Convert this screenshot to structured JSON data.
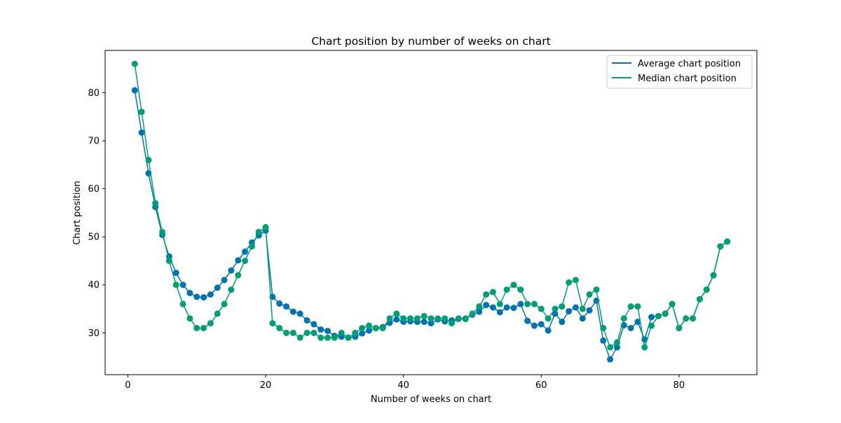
{
  "chart_data": {
    "type": "line",
    "title": "Chart position by number of weeks on chart",
    "xlabel": "Number of weeks on chart",
    "ylabel": "Chart position",
    "xlim": [
      -3.3,
      91.3
    ],
    "ylim": [
      21.3,
      88.8
    ],
    "xticks": [
      0,
      20,
      40,
      60,
      80
    ],
    "yticks": [
      30,
      40,
      50,
      60,
      70,
      80
    ],
    "xtick_labels": [
      "0",
      "20",
      "40",
      "60",
      "80"
    ],
    "ytick_labels": [
      "30",
      "40",
      "50",
      "60",
      "70",
      "80"
    ],
    "grid": false,
    "legend_position": "top-right",
    "legend_entries": [
      "Average chart position",
      "Median chart position"
    ],
    "x": [
      1,
      2,
      3,
      4,
      5,
      6,
      7,
      8,
      9,
      10,
      11,
      12,
      13,
      14,
      15,
      16,
      17,
      18,
      19,
      20,
      21,
      22,
      23,
      24,
      25,
      26,
      27,
      28,
      29,
      30,
      31,
      32,
      33,
      34,
      35,
      36,
      37,
      38,
      39,
      40,
      41,
      42,
      43,
      44,
      45,
      46,
      47,
      48,
      49,
      50,
      51,
      52,
      53,
      54,
      55,
      56,
      57,
      58,
      59,
      60,
      61,
      62,
      63,
      64,
      65,
      66,
      67,
      68,
      69,
      70,
      71,
      72,
      73,
      74,
      75,
      76,
      77,
      78,
      79,
      80,
      81,
      82,
      83,
      84,
      85,
      86,
      87
    ],
    "series": [
      {
        "name": "Average chart position",
        "color": "#0072b2",
        "values": [
          80.5,
          71.7,
          63.2,
          56.2,
          50.4,
          45.9,
          42.5,
          40.0,
          38.3,
          37.5,
          37.4,
          38.0,
          39.4,
          41.0,
          43.0,
          45.1,
          46.9,
          48.8,
          50.3,
          51.3,
          37.5,
          36.1,
          35.5,
          34.4,
          34.0,
          32.6,
          31.8,
          30.7,
          30.4,
          29.4,
          29.2,
          29.0,
          29.2,
          29.9,
          30.5,
          31.0,
          31.2,
          32.1,
          32.8,
          32.3,
          32.4,
          32.3,
          32.3,
          32.0,
          32.8,
          32.4,
          32.6,
          32.9,
          32.9,
          33.8,
          34.4,
          35.8,
          35.3,
          34.3,
          35.3,
          35.2,
          36.0,
          32.5,
          31.5,
          31.8,
          30.5,
          34.0,
          32.3,
          34.5,
          35.3,
          33.0,
          34.7,
          36.7,
          28.4,
          24.5,
          27.0,
          31.6,
          31.0,
          32.3,
          28.6,
          33.3,
          33.5,
          34.0,
          36.0,
          31.0,
          33.0,
          33.0,
          37.0,
          39.0,
          42.0,
          48.0,
          49.0
        ]
      },
      {
        "name": "Median chart position",
        "color": "#009e73",
        "values": [
          86.0,
          76.0,
          66.0,
          57.0,
          51.0,
          45.0,
          40.0,
          36.0,
          33.0,
          31.0,
          31.0,
          32.0,
          34.0,
          36.0,
          39.0,
          42.0,
          45.0,
          48.0,
          51.0,
          52.0,
          32.0,
          31.0,
          30.0,
          30.0,
          29.0,
          30.0,
          30.0,
          29.0,
          29.0,
          29.0,
          30.0,
          29.0,
          30.0,
          31.0,
          31.5,
          31.0,
          31.0,
          33.0,
          34.0,
          33.0,
          33.0,
          33.0,
          33.5,
          33.0,
          33.0,
          33.0,
          32.0,
          33.0,
          33.0,
          34.0,
          35.5,
          38.0,
          38.5,
          36.0,
          39.0,
          40.0,
          39.0,
          36.0,
          36.0,
          35.0,
          33.0,
          35.0,
          35.5,
          40.5,
          41.0,
          35.0,
          38.0,
          39.0,
          31.0,
          27.0,
          28.0,
          33.0,
          35.5,
          35.5,
          27.0,
          31.5,
          33.5,
          34.0,
          36.0,
          31.0,
          33.0,
          33.0,
          37.0,
          39.0,
          42.0,
          48.0,
          49.0
        ]
      }
    ]
  }
}
